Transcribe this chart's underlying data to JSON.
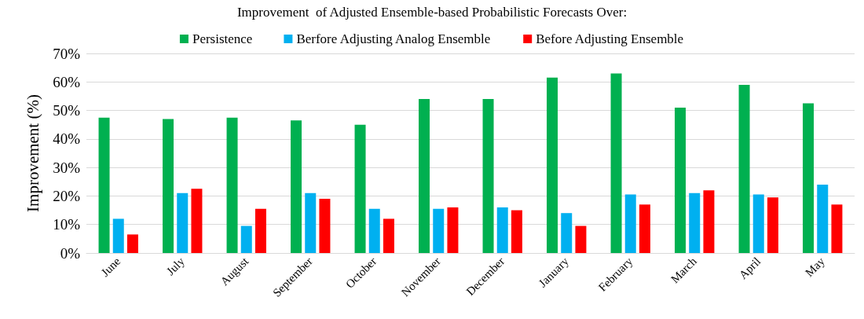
{
  "chart_data": {
    "type": "bar",
    "title": "Improvement  of Adjusted Ensemble-based Probabilistic Forecasts Over:",
    "ylabel": "Improvement (%)",
    "categories": [
      "June",
      "July",
      "August",
      "September",
      "October",
      "November",
      "December",
      "January",
      "February",
      "March",
      "April",
      "May"
    ],
    "series": [
      {
        "name": "Persistence",
        "color": "#00b050",
        "values": [
          47.5,
          47,
          47.5,
          46.5,
          45,
          54,
          54,
          61.5,
          63,
          51,
          59,
          52.5
        ]
      },
      {
        "name": "Berfore Adjusting Analog Ensemble",
        "color": "#00b0f0",
        "values": [
          12,
          21,
          9.5,
          21,
          15.5,
          15.5,
          16,
          14,
          20.5,
          21,
          20.5,
          24
        ]
      },
      {
        "name": "Before Adjusting Ensemble",
        "color": "#ff0000",
        "values": [
          6.5,
          22.5,
          15.5,
          19,
          12,
          16,
          15,
          9.5,
          17,
          22,
          19.5,
          17
        ]
      }
    ],
    "ylim": [
      0,
      70
    ],
    "yticks": [
      {
        "value": 0,
        "label": "0%"
      },
      {
        "value": 10,
        "label": "10%"
      },
      {
        "value": 20,
        "label": "20%"
      },
      {
        "value": 30,
        "label": "30%"
      },
      {
        "value": 40,
        "label": "40%"
      },
      {
        "value": 50,
        "label": "50%"
      },
      {
        "value": 60,
        "label": "60%"
      },
      {
        "value": 70,
        "label": "70%"
      }
    ],
    "grid": "y",
    "legend": "top"
  }
}
